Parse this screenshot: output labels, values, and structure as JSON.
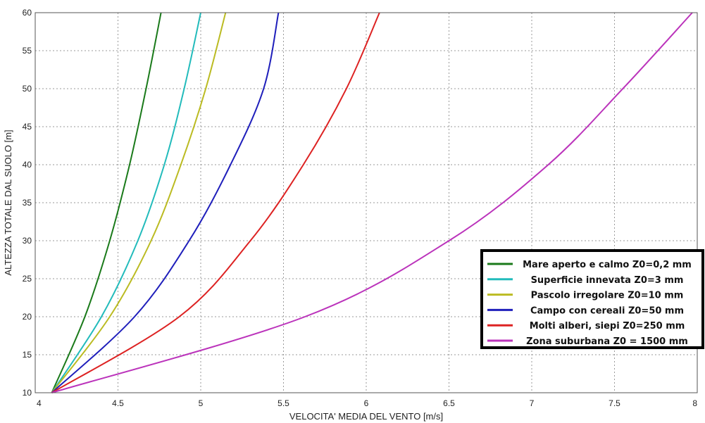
{
  "chart_data": {
    "type": "line",
    "title": "",
    "xlabel": "VELOCITA' MEDIA DEL VENTO [m/s]",
    "ylabel": "ALTEZZA TOTALE DAL SUOLO [m]",
    "xlim": [
      4,
      8
    ],
    "ylim": [
      10,
      60
    ],
    "xticks": [
      4,
      4.5,
      5,
      5.5,
      6,
      6.5,
      7,
      7.5,
      8
    ],
    "yticks": [
      10,
      15,
      20,
      25,
      30,
      35,
      40,
      45,
      50,
      55,
      60
    ],
    "xtick_labels": [
      "4",
      "4.5",
      "5",
      "5.5",
      "6",
      "6.5",
      "7",
      "7.5",
      "8"
    ],
    "ytick_labels": [
      "10",
      "15",
      "20",
      "25",
      "30",
      "35",
      "40",
      "45",
      "50",
      "55",
      "60"
    ],
    "grid": true,
    "legend_position": "right",
    "series": [
      {
        "name": "Mare aperto e calmo Z0=0,2 mm",
        "color": "#1a7a1a",
        "points": [
          [
            4.1,
            10
          ],
          [
            4.3,
            20
          ],
          [
            4.45,
            30
          ],
          [
            4.57,
            40
          ],
          [
            4.67,
            50
          ],
          [
            4.76,
            60
          ]
        ]
      },
      {
        "name": "Superficie innevata Z0=3 mm",
        "color": "#22bbbb",
        "points": [
          [
            4.1,
            10
          ],
          [
            4.4,
            20
          ],
          [
            4.62,
            30
          ],
          [
            4.78,
            40
          ],
          [
            4.9,
            50
          ],
          [
            5.0,
            60
          ]
        ]
      },
      {
        "name": "Pascolo irregolare Z0=10 mm",
        "color": "#bbbb22",
        "points": [
          [
            4.1,
            10
          ],
          [
            4.45,
            20
          ],
          [
            4.7,
            30
          ],
          [
            4.88,
            40
          ],
          [
            5.03,
            50
          ],
          [
            5.15,
            60
          ]
        ]
      },
      {
        "name": "Campo con cereali Z0=50 mm",
        "color": "#1f1fbb",
        "points": [
          [
            4.1,
            10
          ],
          [
            4.6,
            20
          ],
          [
            4.93,
            30
          ],
          [
            5.18,
            40
          ],
          [
            5.38,
            50
          ],
          [
            5.47,
            60
          ]
        ]
      },
      {
        "name": "Molti alberi, siepi Z0=250 mm",
        "color": "#dd2222",
        "points": [
          [
            4.1,
            10
          ],
          [
            4.87,
            20
          ],
          [
            5.3,
            30
          ],
          [
            5.62,
            40
          ],
          [
            5.88,
            50
          ],
          [
            6.08,
            60
          ]
        ]
      },
      {
        "name": "Zona suburbana Z0 = 1500 mm",
        "color": "#bb33bb",
        "points": [
          [
            4.1,
            10
          ],
          [
            5.63,
            20
          ],
          [
            6.5,
            30
          ],
          [
            7.1,
            40
          ],
          [
            7.55,
            50
          ],
          [
            7.97,
            60
          ]
        ]
      }
    ]
  }
}
